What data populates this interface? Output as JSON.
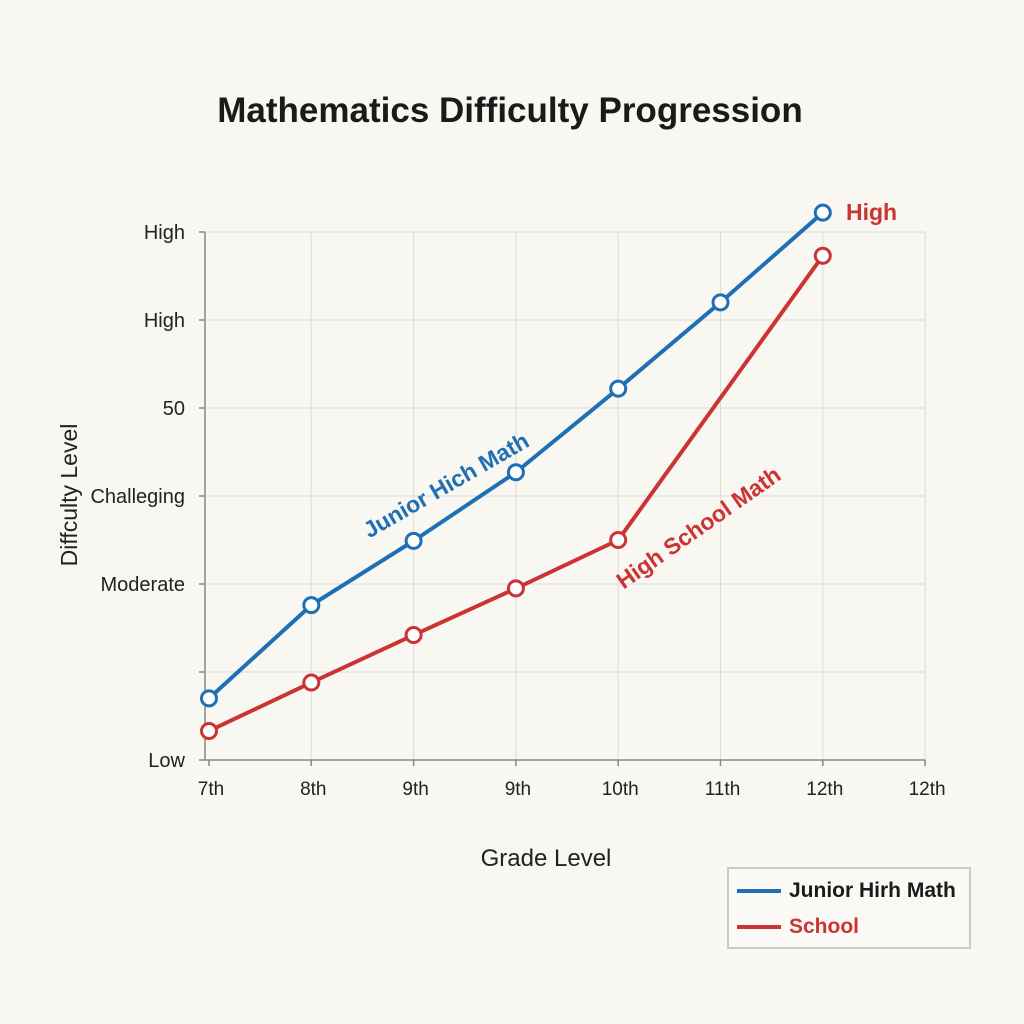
{
  "chart_data": {
    "type": "line",
    "title": "Mathematics Difficulty Progression",
    "xlabel": "Grade Level",
    "ylabel": "Diffculty Level",
    "x_ticks": [
      "7th",
      "8th",
      "9th",
      "9th",
      "10th",
      "11th",
      "12th",
      "12th"
    ],
    "y_ticks": [
      "Low",
      "",
      "Moderate",
      "Challeging",
      "50",
      "High",
      "High"
    ],
    "ylim": [
      0,
      6
    ],
    "grid": true,
    "series": [
      {
        "name": "Junior Hirh Math",
        "color": "#1f6fb5",
        "values": [
          0.7,
          1.76,
          2.49,
          3.27,
          4.22,
          5.2,
          6.22
        ]
      },
      {
        "name": "School",
        "color": "#cc3333",
        "values": [
          0.33,
          0.88,
          1.42,
          1.95,
          2.5,
          null,
          5.73
        ]
      }
    ],
    "annotations": [
      {
        "text": "Junior Hich Math",
        "color": "#1f6fb5"
      },
      {
        "text": "High School Math",
        "color": "#cc3333"
      },
      {
        "text": "High",
        "color": "#cc3333"
      }
    ],
    "legend_position": "bottom-right"
  }
}
